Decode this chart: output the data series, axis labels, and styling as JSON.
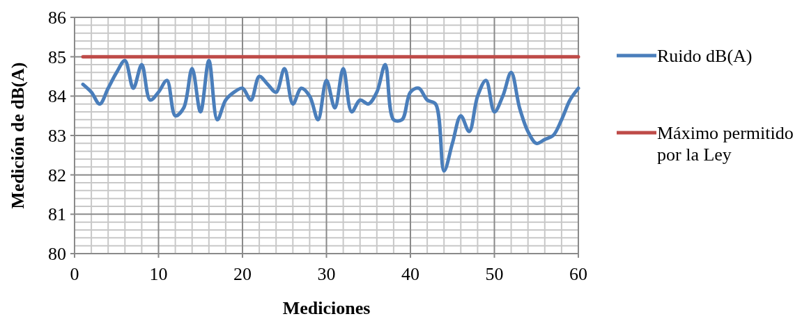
{
  "chart_data": {
    "type": "line",
    "xlabel": "Mediciones",
    "ylabel": "Medición de dB(A)",
    "x": [
      1,
      2,
      3,
      4,
      5,
      6,
      7,
      8,
      9,
      10,
      11,
      12,
      13,
      14,
      15,
      16,
      17,
      18,
      19,
      20,
      21,
      22,
      23,
      24,
      25,
      26,
      27,
      28,
      29,
      30,
      31,
      32,
      33,
      34,
      35,
      36,
      37,
      38,
      39,
      40,
      41,
      42,
      43,
      44,
      45,
      46,
      47,
      48,
      49,
      50,
      51,
      52,
      53,
      54,
      55,
      56,
      57,
      58,
      59,
      60
    ],
    "series": [
      {
        "name": "Ruido dB(A)",
        "color": "#4a7ebb",
        "values": [
          84.3,
          84.1,
          83.8,
          84.2,
          84.6,
          84.9,
          84.2,
          84.8,
          83.9,
          84.1,
          84.4,
          83.5,
          83.7,
          84.7,
          83.6,
          84.9,
          83.4,
          83.9,
          84.1,
          84.2,
          83.9,
          84.5,
          84.3,
          84.1,
          84.7,
          83.8,
          84.2,
          84.0,
          83.4,
          84.4,
          83.7,
          84.7,
          83.6,
          83.9,
          83.8,
          84.1,
          84.8,
          83.4,
          83.4,
          84.1,
          84.2,
          83.9,
          83.8,
          82.1,
          82.8,
          83.5,
          83.1,
          84.0,
          84.4,
          83.6,
          84.0,
          84.6,
          83.7,
          83.1,
          82.8,
          82.9,
          83.0,
          83.4,
          83.9,
          84.2
        ]
      },
      {
        "name": "Máximo permitido por la Ley",
        "color": "#be4b48",
        "x": [
          1,
          60
        ],
        "values": [
          85,
          85
        ]
      }
    ],
    "xlim": [
      0,
      60
    ],
    "xticks": [
      0,
      10,
      20,
      30,
      40,
      50,
      60
    ],
    "ylim": [
      80,
      86
    ],
    "yticks": [
      80,
      81,
      82,
      83,
      84,
      85,
      86
    ],
    "grid": true,
    "legend": "right",
    "marker": "none",
    "line_style": "solid"
  }
}
